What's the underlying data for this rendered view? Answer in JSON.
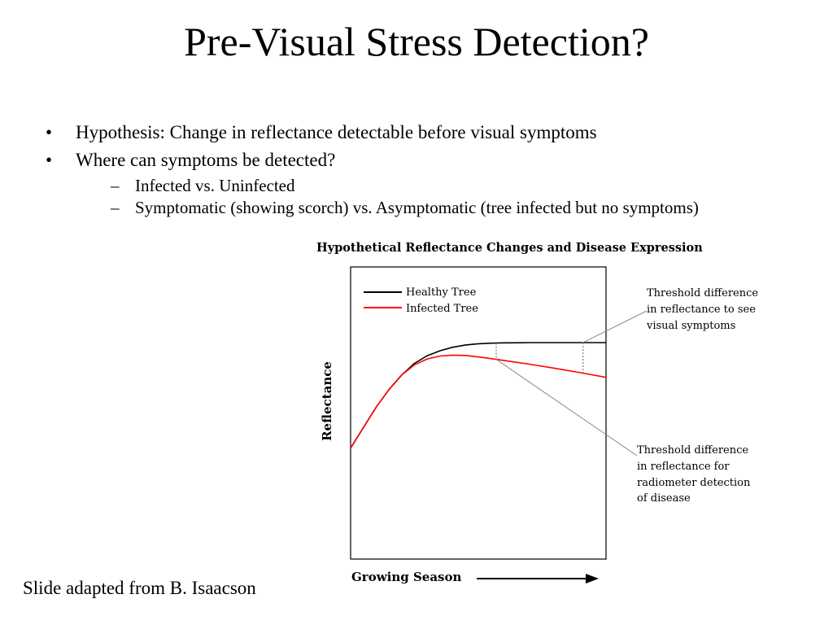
{
  "slide": {
    "title": "Pre-Visual Stress Detection?",
    "bullets": [
      "Hypothesis: Change in reflectance detectable before visual symptoms",
      "Where can symptoms be detected?"
    ],
    "sub_bullets": [
      "Infected vs. Uninfected",
      "Symptomatic (showing scorch) vs. Asymptomatic (tree infected but no symptoms)"
    ],
    "footer": "Slide adapted from B. Isaacson"
  },
  "chart_data": {
    "type": "line",
    "title": "Hypothetical Reflectance Changes and Disease Expression",
    "xlabel": "Growing Season",
    "ylabel": "Reflectance",
    "xlim": [
      0,
      1
    ],
    "ylim": [
      0,
      1
    ],
    "series": [
      {
        "name": "Healthy Tree",
        "color": "#000000",
        "x": [
          0.0,
          0.05,
          0.1,
          0.15,
          0.2,
          0.25,
          0.3,
          0.35,
          0.4,
          0.45,
          0.5,
          0.55,
          0.6,
          0.7,
          0.8,
          0.9,
          1.0
        ],
        "y": [
          0.38,
          0.45,
          0.52,
          0.58,
          0.63,
          0.67,
          0.696,
          0.713,
          0.725,
          0.733,
          0.737,
          0.739,
          0.74,
          0.741,
          0.741,
          0.741,
          0.741
        ]
      },
      {
        "name": "Infected Tree",
        "color": "#ff0000",
        "x": [
          0.0,
          0.05,
          0.1,
          0.15,
          0.2,
          0.25,
          0.3,
          0.35,
          0.4,
          0.45,
          0.5,
          0.55,
          0.6,
          0.7,
          0.8,
          0.9,
          1.0
        ],
        "y": [
          0.38,
          0.45,
          0.52,
          0.58,
          0.63,
          0.665,
          0.685,
          0.695,
          0.698,
          0.697,
          0.692,
          0.686,
          0.68,
          0.667,
          0.653,
          0.638,
          0.622
        ]
      }
    ],
    "annotations": [
      {
        "text": [
          "Threshold difference",
          "in reflectance to see",
          "visual symptoms"
        ],
        "x": 0.91
      },
      {
        "text": [
          "Threshold difference",
          "in reflectance for",
          "radiometer detection",
          "of disease"
        ],
        "x": 0.57
      }
    ],
    "legend_position": "top-left",
    "grid": false
  }
}
